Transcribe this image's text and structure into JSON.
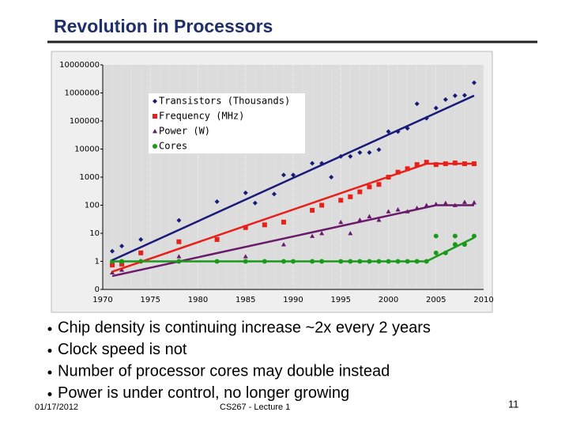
{
  "slide": {
    "title": "Revolution in Processors",
    "bullets": [
      "Chip density is continuing increase ~2x every 2 years",
      "Clock speed is not",
      "Number of processor cores may double instead",
      "Power is under control, no longer growing"
    ],
    "date": "01/17/2012",
    "footer": "CS267 - Lecture 1",
    "page": "11"
  },
  "chart_data": {
    "type": "scatter",
    "log_y": true,
    "grid_x": true,
    "xlim": [
      1970,
      2010
    ],
    "xticks": [
      1970,
      1975,
      1980,
      1985,
      1990,
      1995,
      2000,
      2005,
      2010
    ],
    "ylim": [
      0.1,
      10000000
    ],
    "yticks": [
      {
        "value": 0.1,
        "label": "0"
      },
      1,
      10,
      100,
      1000,
      10000,
      100000,
      1000000,
      10000000
    ],
    "series": [
      {
        "name": "Transistors (Thousands)",
        "color": "#1a1a7a",
        "marker": "diamond",
        "x": [
          1971,
          1972,
          1974,
          1978,
          1982,
          1985,
          1986,
          1988,
          1989,
          1990,
          1992,
          1993,
          1994,
          1995,
          1996,
          1997,
          1998,
          1999,
          2000,
          2001,
          2002,
          2003,
          2004,
          2005,
          2006,
          2007,
          2008,
          2009
        ],
        "values": [
          2.3,
          3.5,
          6,
          29,
          134,
          275,
          120,
          250,
          1200,
          1200,
          3100,
          3100,
          1000,
          5500,
          5500,
          7500,
          7500,
          9500,
          42000,
          42000,
          55000,
          410000,
          125000,
          290000,
          580000,
          800000,
          820000,
          2300000
        ],
        "trend": {
          "x": [
            1971,
            2009
          ],
          "values": [
            1.1,
            800000
          ]
        }
      },
      {
        "name": "Frequency (MHz)",
        "color": "#e8201a",
        "marker": "square",
        "x": [
          1971,
          1972,
          1974,
          1978,
          1982,
          1985,
          1987,
          1989,
          1992,
          1993,
          1995,
          1996,
          1997,
          1998,
          1999,
          2000,
          2001,
          2002,
          2003,
          2004,
          2005,
          2006,
          2007,
          2008,
          2009
        ],
        "values": [
          0.74,
          0.8,
          2,
          5,
          6,
          16,
          20,
          25,
          66,
          100,
          150,
          200,
          300,
          450,
          550,
          1000,
          1500,
          2000,
          2800,
          3400,
          2800,
          3000,
          3200,
          3000,
          3000
        ],
        "trend": {
          "x": [
            1971,
            2004,
            2009
          ],
          "values": [
            0.43,
            3000,
            3000
          ]
        }
      },
      {
        "name": "Power (W)",
        "color": "#6a1a6a",
        "marker": "triangle",
        "x": [
          1971,
          1972,
          1978,
          1985,
          1989,
          1992,
          1993,
          1995,
          1996,
          1997,
          1998,
          1999,
          2000,
          2001,
          2002,
          2003,
          2004,
          2005,
          2006,
          2007,
          2008,
          2009
        ],
        "values": [
          0.4,
          0.5,
          1.5,
          1.5,
          4,
          8,
          10,
          25,
          10,
          30,
          40,
          30,
          60,
          70,
          60,
          80,
          100,
          110,
          120,
          100,
          130,
          125
        ],
        "trend": {
          "x": [
            1971,
            2005,
            2009
          ],
          "values": [
            0.3,
            100,
            100
          ]
        }
      },
      {
        "name": "Cores",
        "color": "#1a9a1a",
        "marker": "circle",
        "x": [
          1971,
          1972,
          1974,
          1978,
          1982,
          1985,
          1987,
          1989,
          1990,
          1992,
          1993,
          1995,
          1996,
          1997,
          1998,
          1999,
          2000,
          2001,
          2002,
          2003,
          2004,
          2005,
          2005,
          2006,
          2007,
          2007,
          2008,
          2009
        ],
        "values": [
          1,
          1,
          1,
          1,
          1,
          1,
          1,
          1,
          1,
          1,
          1,
          1,
          1,
          1,
          1,
          1,
          1,
          1,
          1,
          1,
          1,
          2,
          8,
          2,
          4,
          8,
          4,
          8
        ],
        "trend": {
          "x": [
            1971,
            2004,
            2009
          ],
          "values": [
            1,
            1,
            7
          ]
        }
      }
    ]
  }
}
